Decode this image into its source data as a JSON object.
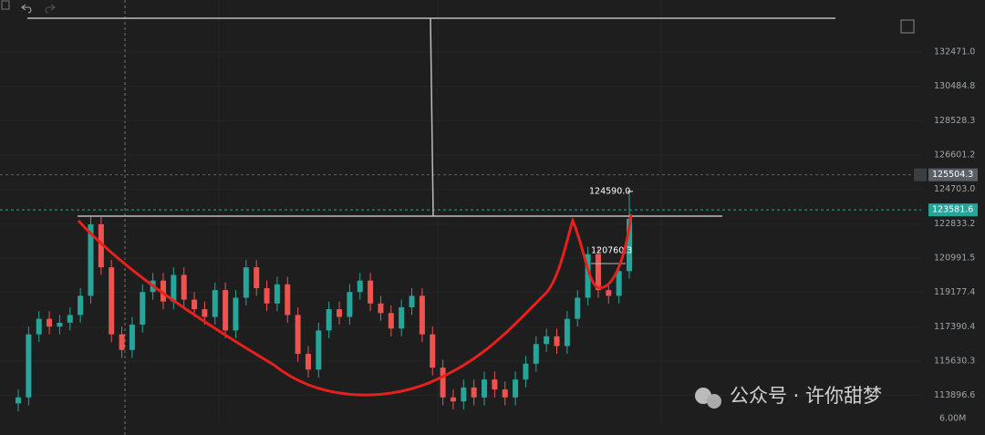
{
  "chart_data": {
    "type": "candlestick",
    "up_color": "#26a69a",
    "down_color": "#ef5350",
    "log_scale": true,
    "ylim": [
      112700,
      134450
    ],
    "yticks": [
      {
        "value": 132471,
        "label": "132471.0"
      },
      130484.8,
      128528.3,
      126601.2,
      {
        "value": 124703,
        "label": "124703.0"
      },
      122833.2,
      120991.5,
      119177.4,
      117390.4,
      115630.3,
      113896.6
    ],
    "open": [
      113500,
      113800,
      117000,
      117800,
      117400,
      117600,
      118000,
      119000,
      122800,
      120500,
      117000,
      116200,
      117500,
      119200,
      119800,
      118700,
      120100,
      118800,
      118300,
      117900,
      119300,
      117200,
      118900,
      120500,
      119400,
      118600,
      119600,
      118000,
      116000,
      115200,
      117200,
      118300,
      117900,
      119200,
      119800,
      118600,
      118100,
      117300,
      118400,
      119000,
      117000,
      115300,
      113800,
      113600,
      114300,
      113800,
      114700,
      114200,
      113800,
      114700,
      115500,
      116500,
      116900,
      116400,
      117800,
      118900,
      121200,
      119300,
      119000,
      120300
    ],
    "high": [
      114200,
      117400,
      118200,
      118200,
      118000,
      118400,
      119400,
      123200,
      123200,
      120900,
      117400,
      117900,
      119600,
      120200,
      120200,
      120500,
      120500,
      119200,
      118700,
      119700,
      119700,
      119300,
      120900,
      120900,
      119800,
      120000,
      120000,
      118400,
      116400,
      117600,
      118700,
      118700,
      119600,
      120200,
      120200,
      119000,
      118500,
      118800,
      119400,
      119400,
      117400,
      115700,
      114200,
      114700,
      114700,
      115100,
      115100,
      114600,
      115100,
      115900,
      116900,
      117300,
      117300,
      118200,
      119300,
      121600,
      121600,
      119700,
      120700,
      124590
    ],
    "low": [
      113100,
      113400,
      116600,
      117000,
      117000,
      117200,
      117600,
      118600,
      120100,
      116600,
      115800,
      115800,
      117100,
      118800,
      118300,
      118300,
      118400,
      117900,
      117500,
      117500,
      116800,
      116800,
      118500,
      119000,
      118200,
      118200,
      117600,
      115600,
      114800,
      114800,
      116800,
      117500,
      117500,
      118800,
      118200,
      117700,
      116900,
      116900,
      118000,
      116600,
      114900,
      113400,
      113200,
      113200,
      113400,
      113400,
      113800,
      113400,
      113400,
      114300,
      115100,
      116100,
      116000,
      116000,
      117400,
      118500,
      118900,
      118600,
      118600,
      119900
    ],
    "close": [
      113800,
      117000,
      117800,
      117400,
      117600,
      118000,
      119000,
      122800,
      120500,
      117000,
      116200,
      117500,
      119200,
      119800,
      118700,
      120100,
      118800,
      118300,
      117900,
      119300,
      117200,
      118900,
      120500,
      119400,
      118600,
      119600,
      118000,
      116000,
      115200,
      117200,
      118300,
      117900,
      119200,
      119800,
      118600,
      118100,
      117300,
      118400,
      119000,
      117000,
      115300,
      113800,
      113600,
      114300,
      113800,
      114700,
      114200,
      113800,
      114700,
      115500,
      116500,
      116900,
      116400,
      117800,
      118900,
      121200,
      119300,
      119000,
      120300,
      123100
    ],
    "price_lines": [
      125504.3,
      123581.6
    ],
    "annotations": [
      {
        "value": 124590,
        "label": "124590.0"
      },
      {
        "value": 120760.3,
        "label": "120760.3"
      }
    ],
    "volume_label": "6.00M",
    "watermark": "公众号 · 许你甜梦"
  }
}
